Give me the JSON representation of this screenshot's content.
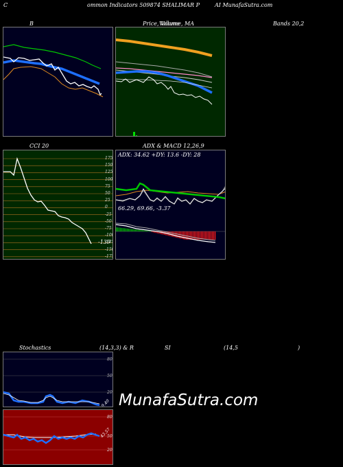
{
  "header": {
    "left": "C",
    "middle": "ommon  Indicators 509874  SHALIMAR P",
    "right": "AI MunafaSutra.com"
  },
  "row1": {
    "b_title": "B",
    "price_title": "Price, Volume, MA",
    "price_overlap": "Volume",
    "bands_title": "Bands 20,2"
  },
  "cci": {
    "title": "CCI 20",
    "value_label": "-139",
    "scale": [
      "175",
      "150",
      "125",
      "100",
      "75",
      "50",
      "25",
      "0",
      "-25",
      "-50",
      "-75",
      "-100",
      "-125",
      "-150",
      "-175"
    ]
  },
  "adx_macd": {
    "title": "ADX  & MACD 12,26,9",
    "adx_text": "ADX: 34.62  +DY: 13.6  -DY: 28",
    "macd_text": "66.29,  69.66,  -3.37"
  },
  "stoch_rsi": {
    "stoch_label": "Stochastics",
    "params": "(14,3,3) & R",
    "rsi_label": "SI",
    "rsi_params": "(14,5",
    "close_paren": ")",
    "stoch_scale": [
      "80",
      "50",
      "20"
    ],
    "stoch_value": "9.40",
    "rsi_scale": [
      "80",
      "50",
      "20"
    ],
    "rsi_value": "43.57"
  },
  "watermark": "MunafaSutra.com",
  "colors": {
    "panel_dark": "#000020",
    "panel_green": "#002800",
    "panel_red": "#8b0000",
    "ma_green": "#00c800",
    "ma_blue": "#1e6fff",
    "ma_orange": "#e08a1e"
  }
}
